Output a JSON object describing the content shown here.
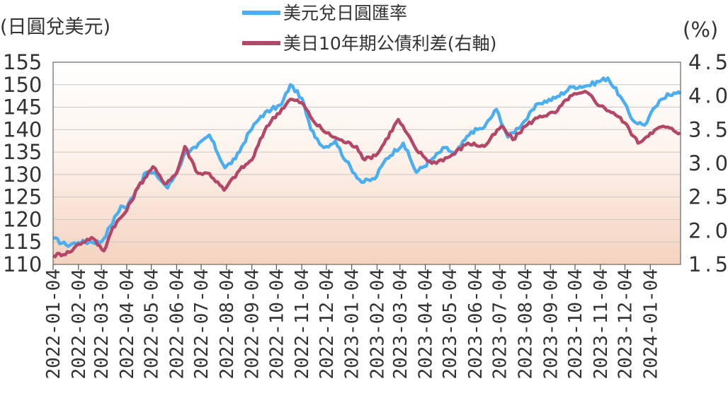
{
  "chart_data": {
    "type": "line",
    "left_axis_label": "(日圓兌美元)",
    "right_axis_label": "(%)",
    "y_left": {
      "min": 110,
      "max": 155,
      "ticks": [
        110,
        115,
        120,
        125,
        130,
        135,
        140,
        145,
        150,
        155
      ]
    },
    "y_right": {
      "min": 1.5,
      "max": 4.5,
      "ticks": [
        "1.5",
        "2.0",
        "2.5",
        "3.0",
        "3.5",
        "4.0",
        "4.5"
      ]
    },
    "x_ticks": [
      "2022-01-04",
      "2022-02-04",
      "2022-03-04",
      "2022-04-04",
      "2022-05-04",
      "2022-06-04",
      "2022-07-04",
      "2022-08-04",
      "2022-09-04",
      "2022-10-04",
      "2022-11-04",
      "2022-12-04",
      "2023-01-04",
      "2023-02-04",
      "2023-03-04",
      "2023-04-04",
      "2023-05-04",
      "2023-06-04",
      "2023-07-04",
      "2023-08-04",
      "2023-09-04",
      "2023-10-04",
      "2023-11-04",
      "2023-12-04",
      "2024-01-04"
    ],
    "x_end": "2024-02-10",
    "grid": true,
    "legend_position": "top-center",
    "series": [
      {
        "name": "美元兌日圓匯率",
        "axis": "left",
        "color": "#4aaef0",
        "points": [
          [
            "2022-01-04",
            115.8
          ],
          [
            "2022-01-20",
            114.3
          ],
          [
            "2022-02-04",
            114.9
          ],
          [
            "2022-02-20",
            115.0
          ],
          [
            "2022-03-04",
            115.0
          ],
          [
            "2022-03-15",
            118.5
          ],
          [
            "2022-03-28",
            123.0
          ],
          [
            "2022-04-04",
            122.6
          ],
          [
            "2022-04-15",
            126.5
          ],
          [
            "2022-04-28",
            130.5
          ],
          [
            "2022-05-10",
            130.0
          ],
          [
            "2022-05-24",
            127.0
          ],
          [
            "2022-06-04",
            130.5
          ],
          [
            "2022-06-15",
            135.0
          ],
          [
            "2022-06-28",
            136.0
          ],
          [
            "2022-07-14",
            138.8
          ],
          [
            "2022-08-02",
            131.5
          ],
          [
            "2022-08-15",
            133.5
          ],
          [
            "2022-09-01",
            139.5
          ],
          [
            "2022-09-15",
            143.0
          ],
          [
            "2022-09-28",
            144.5
          ],
          [
            "2022-10-10",
            145.5
          ],
          [
            "2022-10-21",
            150.0
          ],
          [
            "2022-11-04",
            147.0
          ],
          [
            "2022-11-15",
            140.0
          ],
          [
            "2022-12-01",
            136.0
          ],
          [
            "2022-12-15",
            137.5
          ],
          [
            "2022-12-28",
            133.0
          ],
          [
            "2023-01-16",
            128.3
          ],
          [
            "2023-02-01",
            129.0
          ],
          [
            "2023-02-15",
            133.5
          ],
          [
            "2023-03-08",
            137.0
          ],
          [
            "2023-03-24",
            130.5
          ],
          [
            "2023-04-10",
            133.0
          ],
          [
            "2023-04-28",
            136.0
          ],
          [
            "2023-05-10",
            134.5
          ],
          [
            "2023-05-30",
            139.5
          ],
          [
            "2023-06-15",
            140.5
          ],
          [
            "2023-06-30",
            144.5
          ],
          [
            "2023-07-14",
            138.3
          ],
          [
            "2023-08-04",
            142.0
          ],
          [
            "2023-08-20",
            145.8
          ],
          [
            "2023-09-10",
            147.0
          ],
          [
            "2023-09-30",
            149.5
          ],
          [
            "2023-10-20",
            149.8
          ],
          [
            "2023-11-13",
            151.5
          ],
          [
            "2023-11-28",
            147.5
          ],
          [
            "2023-12-14",
            142.0
          ],
          [
            "2023-12-28",
            141.0
          ],
          [
            "2024-01-10",
            145.0
          ],
          [
            "2024-01-25",
            148.0
          ],
          [
            "2024-02-10",
            148.0
          ]
        ]
      },
      {
        "name": "美日10年期公債利差(右軸)",
        "axis": "right",
        "color": "#b44668",
        "points": [
          [
            "2022-01-04",
            1.63
          ],
          [
            "2022-01-24",
            1.68
          ],
          [
            "2022-02-04",
            1.8
          ],
          [
            "2022-02-20",
            1.9
          ],
          [
            "2022-03-07",
            1.7
          ],
          [
            "2022-03-18",
            2.05
          ],
          [
            "2022-04-04",
            2.3
          ],
          [
            "2022-04-18",
            2.65
          ],
          [
            "2022-05-06",
            2.95
          ],
          [
            "2022-05-20",
            2.7
          ],
          [
            "2022-06-04",
            2.85
          ],
          [
            "2022-06-14",
            3.25
          ],
          [
            "2022-06-30",
            2.85
          ],
          [
            "2022-07-14",
            2.85
          ],
          [
            "2022-08-01",
            2.6
          ],
          [
            "2022-08-20",
            2.9
          ],
          [
            "2022-09-04",
            3.05
          ],
          [
            "2022-09-22",
            3.55
          ],
          [
            "2022-10-21",
            3.95
          ],
          [
            "2022-11-04",
            3.9
          ],
          [
            "2022-11-20",
            3.6
          ],
          [
            "2022-12-04",
            3.45
          ],
          [
            "2022-12-20",
            3.35
          ],
          [
            "2023-01-10",
            3.25
          ],
          [
            "2023-01-20",
            3.05
          ],
          [
            "2023-02-05",
            3.15
          ],
          [
            "2023-03-02",
            3.65
          ],
          [
            "2023-03-24",
            3.2
          ],
          [
            "2023-04-12",
            3.0
          ],
          [
            "2023-05-04",
            3.1
          ],
          [
            "2023-05-26",
            3.3
          ],
          [
            "2023-06-15",
            3.25
          ],
          [
            "2023-07-06",
            3.55
          ],
          [
            "2023-07-20",
            3.35
          ],
          [
            "2023-08-04",
            3.55
          ],
          [
            "2023-08-22",
            3.7
          ],
          [
            "2023-09-10",
            3.75
          ],
          [
            "2023-09-28",
            4.0
          ],
          [
            "2023-10-19",
            4.05
          ],
          [
            "2023-11-04",
            3.85
          ],
          [
            "2023-11-20",
            3.75
          ],
          [
            "2023-12-04",
            3.6
          ],
          [
            "2023-12-20",
            3.3
          ],
          [
            "2024-01-04",
            3.45
          ],
          [
            "2024-01-20",
            3.55
          ],
          [
            "2024-02-10",
            3.45
          ]
        ]
      }
    ]
  }
}
